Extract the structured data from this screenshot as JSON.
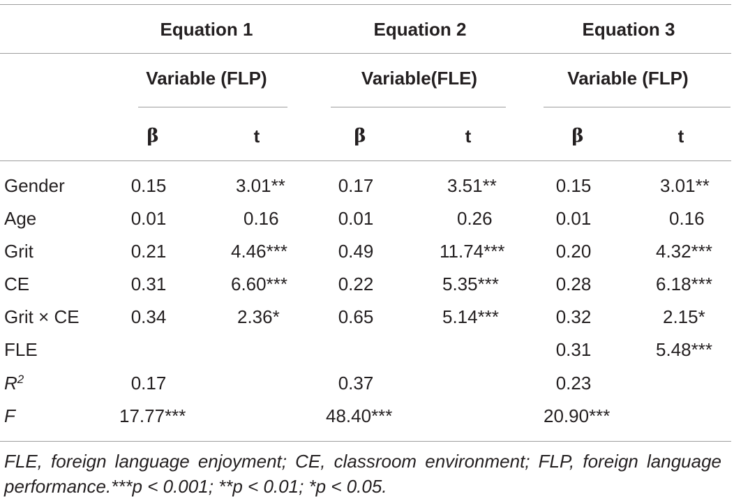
{
  "table": {
    "equations": [
      "Equation 1",
      "Equation 2",
      "Equation 3"
    ],
    "variables": [
      "Variable (FLP)",
      "Variable(FLE)",
      "Variable (FLP)"
    ],
    "stat_headers": [
      "β",
      "t",
      "β",
      "t",
      "β",
      "t"
    ],
    "rows": [
      {
        "label": "Gender",
        "cells": [
          "0.15",
          "3.01**",
          "0.17",
          "3.51**",
          "0.15",
          "3.01**"
        ]
      },
      {
        "label": "Age",
        "cells": [
          "0.01",
          "0.16",
          "0.01",
          "0.26",
          "0.01",
          "0.16"
        ]
      },
      {
        "label": "Grit",
        "cells": [
          "0.21",
          "4.46***",
          "0.49",
          "11.74***",
          "0.20",
          "4.32***"
        ]
      },
      {
        "label": "CE",
        "cells": [
          "0.31",
          "6.60***",
          "0.22",
          "5.35***",
          "0.28",
          "6.18***"
        ]
      },
      {
        "label": "Grit × CE",
        "cells": [
          "0.34",
          "2.36*",
          "0.65",
          "5.14***",
          "0.32",
          "2.15*"
        ]
      },
      {
        "label": "FLE",
        "cells": [
          "",
          "",
          "",
          "",
          "0.31",
          "5.48***"
        ]
      },
      {
        "label_base": "R",
        "label_sup": "2",
        "cells": [
          "0.17",
          "",
          "0.37",
          "",
          "0.23",
          ""
        ]
      },
      {
        "label": "F",
        "cells": [
          "17.77***",
          "",
          "48.40***",
          "",
          "20.90***",
          ""
        ]
      }
    ],
    "footnote": "FLE, foreign language enjoyment; CE, classroom environment; FLP, foreign language performance.***p < 0.001; **p < 0.01; *p < 0.05."
  }
}
